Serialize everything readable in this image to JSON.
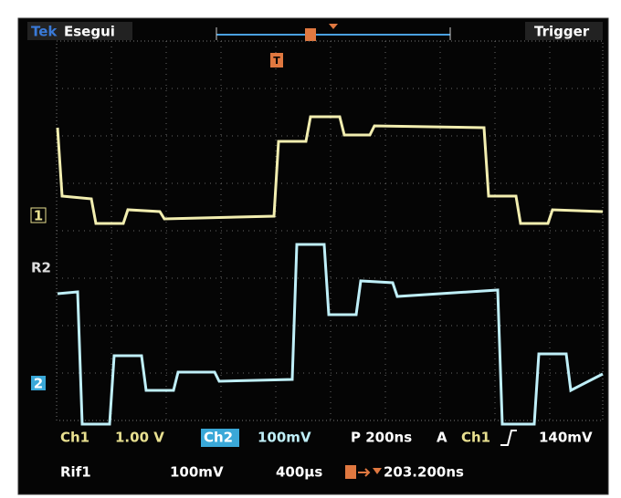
{
  "top_bar": {
    "brand": "Tek",
    "mode": "Esegui",
    "menu": "Trigger"
  },
  "markers": {
    "trigger_position": "T",
    "ch1": "1",
    "ref2": "R2",
    "ch2": "2"
  },
  "readouts": {
    "row1": {
      "ch1_label": "Ch1",
      "ch1_scale": "1.00 V",
      "ch2_label": "Ch2",
      "ch2_scale": "100mV",
      "timebase": "P 200ns",
      "acq": "A",
      "trig_source": "Ch1",
      "trig_level": "140mV"
    },
    "row2": {
      "ref_label": "Rif1",
      "ref_scale": "100mV",
      "ref_time": "400µs",
      "delay": "203.200ns"
    }
  }
}
